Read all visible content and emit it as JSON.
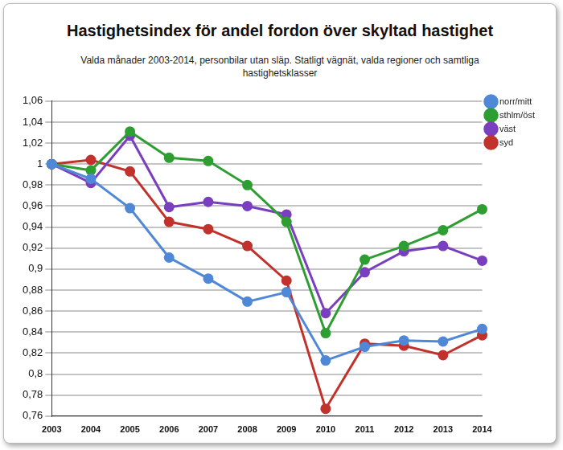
{
  "chart_data": {
    "type": "line",
    "title": "Hastighetsindex för andel fordon över skyltad hastighet",
    "subtitle": "Valda månader 2003-2014, personbilar utan släp. Statligt vägnät, valda regioner och samtliga hastighetsklasser",
    "categories": [
      "2003",
      "2004",
      "2005",
      "2006",
      "2007",
      "2008",
      "2009",
      "2010",
      "2011",
      "2012",
      "2013",
      "2014"
    ],
    "series": [
      {
        "name": "norr/mitt",
        "color": "#4f88d6",
        "marker": "circle",
        "line_style": "solid",
        "values": [
          1,
          0.986,
          0.958,
          0.911,
          0.891,
          0.869,
          0.878,
          0.813,
          0.826,
          0.832,
          0.831,
          0.843
        ]
      },
      {
        "name": "sthlm/öst",
        "color": "#2f9e32",
        "marker": "circle",
        "line_style": "solid",
        "values": [
          1,
          0.994,
          1.031,
          1.006,
          1.003,
          0.98,
          0.945,
          0.839,
          0.909,
          0.922,
          0.937,
          0.957
        ]
      },
      {
        "name": "väst",
        "color": "#7a3fbe",
        "marker": "circle",
        "line_style": "solid",
        "values": [
          1,
          0.982,
          1.027,
          0.959,
          0.964,
          0.96,
          0.952,
          0.858,
          0.897,
          0.917,
          0.922,
          0.908
        ]
      },
      {
        "name": "syd",
        "color": "#c2322c",
        "marker": "circle",
        "line_style": "solid",
        "values": [
          1,
          1.004,
          0.993,
          0.945,
          0.938,
          0.922,
          0.889,
          0.767,
          0.829,
          0.827,
          0.818,
          0.837
        ]
      }
    ],
    "ylim": [
      0.76,
      1.06
    ],
    "yticks": [
      {
        "value": 0.76,
        "label": "0,76"
      },
      {
        "value": 0.78,
        "label": "0,78"
      },
      {
        "value": 0.8,
        "label": "0,8"
      },
      {
        "value": 0.82,
        "label": "0,82"
      },
      {
        "value": 0.84,
        "label": "0,84"
      },
      {
        "value": 0.86,
        "label": "0,86"
      },
      {
        "value": 0.88,
        "label": "0,88"
      },
      {
        "value": 0.9,
        "label": "0,9"
      },
      {
        "value": 0.92,
        "label": "0,92"
      },
      {
        "value": 0.94,
        "label": "0,94"
      },
      {
        "value": 0.96,
        "label": "0,96"
      },
      {
        "value": 0.98,
        "label": "0,98"
      },
      1,
      {
        "value": 1.02,
        "label": "1,02"
      },
      {
        "value": 1.04,
        "label": "1,04"
      },
      {
        "value": 1.06,
        "label": "1,06"
      }
    ],
    "grid": true,
    "legend": "top-right"
  }
}
